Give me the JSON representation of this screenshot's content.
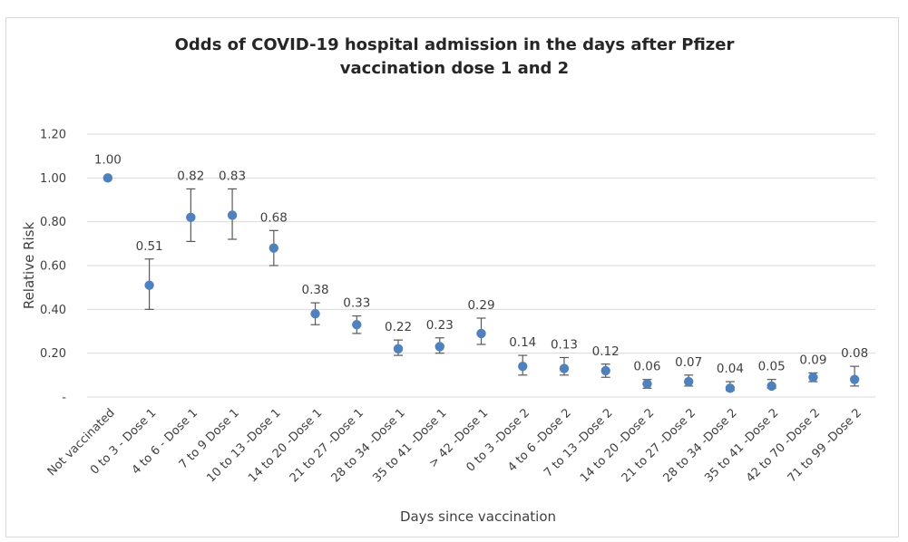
{
  "chart_data": {
    "type": "scatter",
    "title_lines": [
      "Odds of COVID-19 hospital admission in the days after Pfizer",
      "vaccination dose 1 and 2"
    ],
    "xlabel": "Days since  vaccination",
    "ylabel": "Relative Risk",
    "ylim": [
      0,
      1.2
    ],
    "ytick_values": [
      0,
      0.2,
      0.4,
      0.6,
      0.8,
      1.0,
      1.2
    ],
    "ytick_labels": [
      "-",
      "0.20",
      "0.40",
      "0.60",
      "0.80",
      "1.00",
      "1.20"
    ],
    "grid": true,
    "marker_color": "#4f81bd",
    "errorbar_color": "#595959",
    "categories": [
      "Not vaccinated",
      "0 to 3 - Dose 1",
      "4 to 6  - Dose 1",
      "7 to 9  Dose 1",
      "10 to 13 -Dose 1",
      "14 to 20 -Dose 1",
      "21 to 27 -Dose 1",
      "28 to 34 -Dose 1",
      "35 to 41 -Dose 1",
      "> 42 -Dose 1",
      "0 to 3 -Dose 2",
      "4 to 6 -Dose 2",
      "7 to 13 -Dose 2",
      "14 to 20 -Dose 2",
      "21 to 27 -Dose 2",
      "28 to 34 -Dose 2",
      "35 to 41 -Dose 2",
      "42 to 70 -Dose 2",
      "71 to 99 -Dose 2"
    ],
    "values": [
      1.0,
      0.51,
      0.82,
      0.83,
      0.68,
      0.38,
      0.33,
      0.22,
      0.23,
      0.29,
      0.14,
      0.13,
      0.12,
      0.06,
      0.07,
      0.04,
      0.05,
      0.09,
      0.08
    ],
    "value_labels": [
      "1.00",
      "0.51",
      "0.82",
      "0.83",
      "0.68",
      "0.38",
      "0.33",
      "0.22",
      "0.23",
      "0.29",
      "0.14",
      "0.13",
      "0.12",
      "0.06",
      "0.07",
      "0.04",
      "0.05",
      "0.09",
      "0.08"
    ],
    "ci_lower": [
      null,
      0.4,
      0.71,
      0.72,
      0.6,
      0.33,
      0.29,
      0.19,
      0.2,
      0.24,
      0.1,
      0.1,
      0.09,
      0.04,
      0.05,
      0.03,
      0.04,
      0.07,
      0.05
    ],
    "ci_upper": [
      null,
      0.63,
      0.95,
      0.95,
      0.76,
      0.43,
      0.37,
      0.26,
      0.27,
      0.36,
      0.19,
      0.18,
      0.15,
      0.08,
      0.1,
      0.07,
      0.08,
      0.11,
      0.14
    ]
  }
}
